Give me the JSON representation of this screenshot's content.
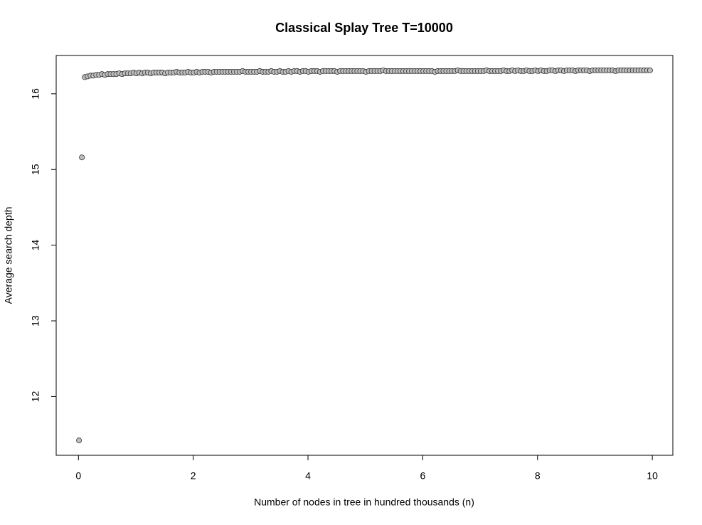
{
  "chart_data": {
    "type": "scatter",
    "title": "Classical Splay Tree T=10000",
    "x_label": "Number of nodes in tree in hundred thousands (n)",
    "y_label": "Average search depth",
    "color": "#bebebe",
    "x": [
      0.01,
      0.06,
      0.11,
      0.16,
      0.21,
      0.26,
      0.31,
      0.36,
      0.41,
      0.46,
      0.51,
      0.56,
      0.61,
      0.66,
      0.71,
      0.76,
      0.81,
      0.86,
      0.91,
      0.96,
      1.01,
      1.06,
      1.11,
      1.16,
      1.21,
      1.26,
      1.31,
      1.36,
      1.41,
      1.46,
      1.51,
      1.56,
      1.61,
      1.66,
      1.71,
      1.76,
      1.81,
      1.86,
      1.91,
      1.96,
      2.01,
      2.06,
      2.11,
      2.16,
      2.21,
      2.26,
      2.31,
      2.36,
      2.41,
      2.46,
      2.51,
      2.56,
      2.61,
      2.66,
      2.71,
      2.76,
      2.81,
      2.86,
      2.91,
      2.96,
      3.01,
      3.06,
      3.11,
      3.16,
      3.21,
      3.26,
      3.31,
      3.36,
      3.41,
      3.46,
      3.51,
      3.56,
      3.61,
      3.66,
      3.71,
      3.76,
      3.81,
      3.86,
      3.91,
      3.96,
      4.01,
      4.06,
      4.11,
      4.16,
      4.21,
      4.26,
      4.31,
      4.36,
      4.41,
      4.46,
      4.51,
      4.56,
      4.61,
      4.66,
      4.71,
      4.76,
      4.81,
      4.86,
      4.91,
      4.96,
      5.01,
      5.06,
      5.11,
      5.16,
      5.21,
      5.26,
      5.31,
      5.36,
      5.41,
      5.46,
      5.51,
      5.56,
      5.61,
      5.66,
      5.71,
      5.76,
      5.81,
      5.86,
      5.91,
      5.96,
      6.01,
      6.06,
      6.11,
      6.16,
      6.21,
      6.26,
      6.31,
      6.36,
      6.41,
      6.46,
      6.51,
      6.56,
      6.61,
      6.66,
      6.71,
      6.76,
      6.81,
      6.86,
      6.91,
      6.96,
      7.01,
      7.06,
      7.11,
      7.16,
      7.21,
      7.26,
      7.31,
      7.36,
      7.41,
      7.46,
      7.51,
      7.56,
      7.61,
      7.66,
      7.71,
      7.76,
      7.81,
      7.86,
      7.91,
      7.96,
      8.01,
      8.06,
      8.11,
      8.16,
      8.21,
      8.26,
      8.31,
      8.36,
      8.41,
      8.46,
      8.51,
      8.56,
      8.61,
      8.66,
      8.71,
      8.76,
      8.81,
      8.86,
      8.91,
      8.96,
      9.01,
      9.06,
      9.11,
      9.16,
      9.21,
      9.26,
      9.31,
      9.36,
      9.41,
      9.46,
      9.51,
      9.56,
      9.61,
      9.66,
      9.71,
      9.76,
      9.81,
      9.86,
      9.91,
      9.96
    ],
    "values": [
      11.42,
      15.16,
      16.22,
      16.23,
      16.24,
      16.24,
      16.25,
      16.25,
      16.26,
      16.25,
      16.26,
      16.26,
      16.26,
      16.26,
      16.27,
      16.26,
      16.27,
      16.27,
      16.27,
      16.28,
      16.27,
      16.28,
      16.27,
      16.28,
      16.28,
      16.27,
      16.28,
      16.28,
      16.28,
      16.28,
      16.27,
      16.28,
      16.28,
      16.28,
      16.29,
      16.28,
      16.28,
      16.28,
      16.29,
      16.28,
      16.28,
      16.29,
      16.28,
      16.29,
      16.29,
      16.29,
      16.28,
      16.29,
      16.29,
      16.29,
      16.29,
      16.29,
      16.29,
      16.29,
      16.29,
      16.29,
      16.29,
      16.3,
      16.29,
      16.29,
      16.29,
      16.29,
      16.29,
      16.3,
      16.29,
      16.29,
      16.29,
      16.3,
      16.29,
      16.29,
      16.3,
      16.29,
      16.29,
      16.3,
      16.29,
      16.3,
      16.3,
      16.29,
      16.3,
      16.3,
      16.29,
      16.3,
      16.3,
      16.3,
      16.29,
      16.3,
      16.3,
      16.3,
      16.3,
      16.3,
      16.29,
      16.3,
      16.3,
      16.3,
      16.3,
      16.3,
      16.3,
      16.3,
      16.3,
      16.3,
      16.29,
      16.3,
      16.3,
      16.3,
      16.3,
      16.3,
      16.31,
      16.3,
      16.3,
      16.3,
      16.3,
      16.3,
      16.3,
      16.3,
      16.3,
      16.3,
      16.3,
      16.3,
      16.3,
      16.3,
      16.3,
      16.3,
      16.3,
      16.3,
      16.29,
      16.3,
      16.3,
      16.3,
      16.3,
      16.3,
      16.3,
      16.3,
      16.31,
      16.3,
      16.3,
      16.3,
      16.3,
      16.3,
      16.3,
      16.3,
      16.3,
      16.3,
      16.31,
      16.3,
      16.3,
      16.3,
      16.3,
      16.3,
      16.31,
      16.3,
      16.3,
      16.31,
      16.3,
      16.31,
      16.3,
      16.3,
      16.31,
      16.3,
      16.3,
      16.31,
      16.3,
      16.31,
      16.3,
      16.3,
      16.31,
      16.31,
      16.3,
      16.31,
      16.31,
      16.3,
      16.31,
      16.31,
      16.31,
      16.3,
      16.31,
      16.31,
      16.31,
      16.31,
      16.3,
      16.31,
      16.31,
      16.31,
      16.31,
      16.31,
      16.31,
      16.31,
      16.31,
      16.3,
      16.31,
      16.31,
      16.31,
      16.31,
      16.31,
      16.31,
      16.31,
      16.31,
      16.31,
      16.31,
      16.31,
      16.31
    ],
    "xlim": [
      -0.388,
      10.358
    ],
    "xticks": [
      0,
      2,
      4,
      6,
      8,
      10
    ],
    "ylim": [
      11.224,
      16.506
    ],
    "yticks": [
      12,
      13,
      14,
      15,
      16
    ]
  }
}
